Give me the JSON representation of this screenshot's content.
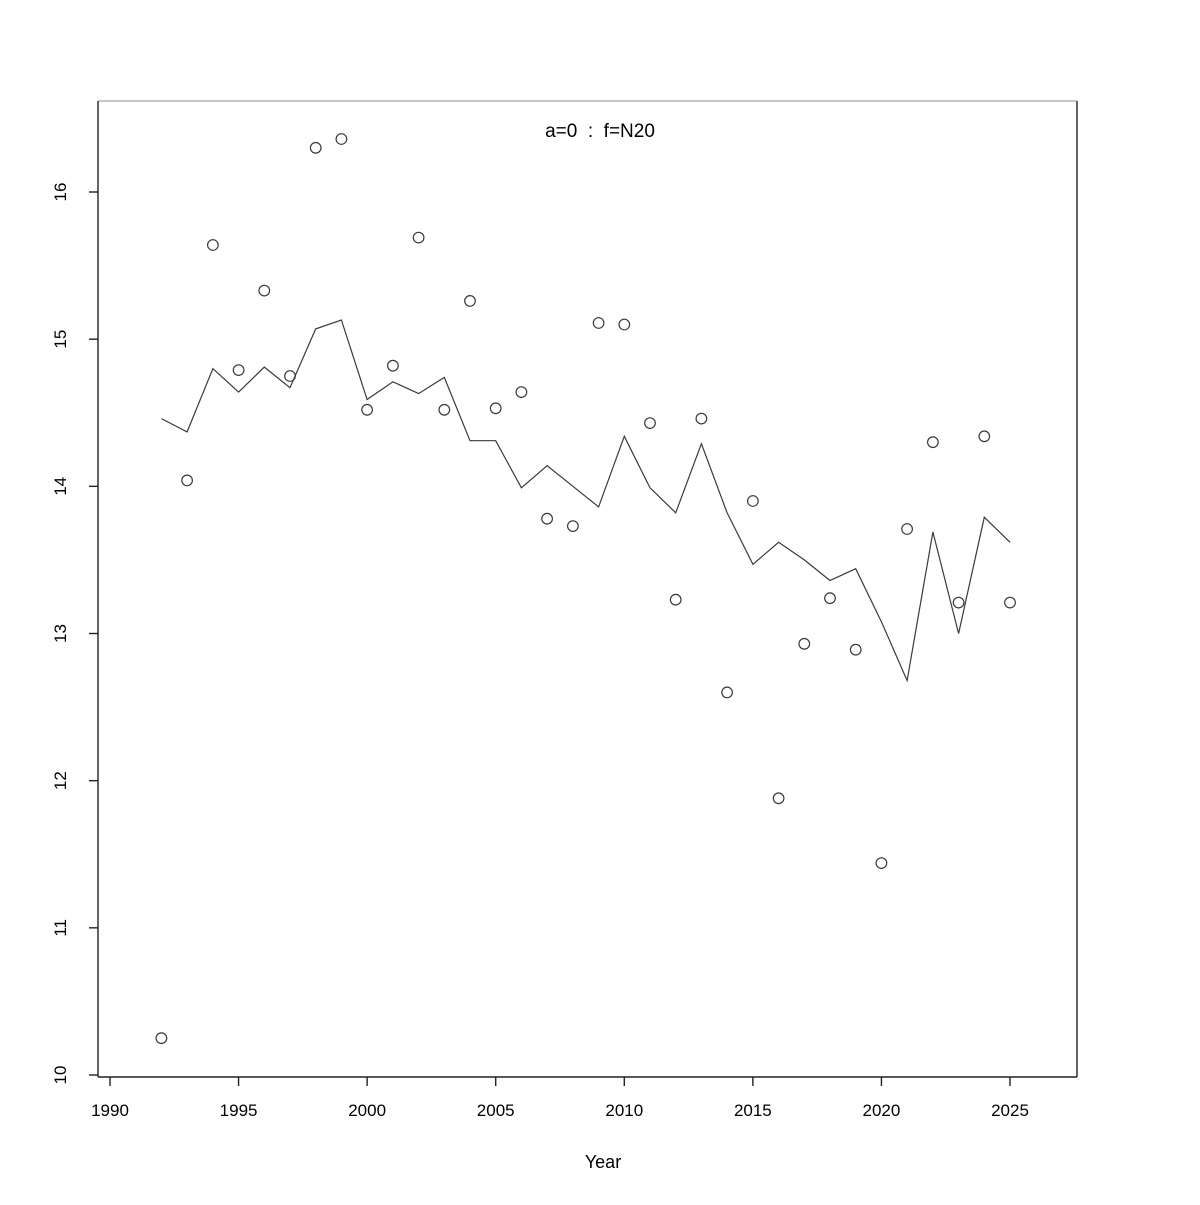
{
  "page": {
    "background": "#ffffff"
  },
  "chart_data": {
    "type": "scatter",
    "title": "a=0  :  f=N20",
    "title_color": "#8f8f8f",
    "xlabel": "Year",
    "ylabel": "",
    "grid": false,
    "legend_position": "none",
    "x_ticks": [
      1990,
      1995,
      2000,
      2005,
      2010,
      2015,
      2020,
      2025
    ],
    "y_ticks": [
      10,
      11,
      12,
      13,
      14,
      15,
      16
    ],
    "xlim": [
      1989.5,
      2027.6
    ],
    "ylim": [
      9.97,
      16.62
    ],
    "x": [
      1992,
      1993,
      1994,
      1995,
      1996,
      1997,
      1998,
      1999,
      2000,
      2001,
      2002,
      2003,
      2004,
      2005,
      2006,
      2007,
      2008,
      2009,
      2010,
      2011,
      2012,
      2013,
      2014,
      2015,
      2016,
      2017,
      2018,
      2019,
      2020,
      2021,
      2022,
      2023,
      2024,
      2025
    ],
    "series": [
      {
        "name": "observed-points",
        "style": "open-circles",
        "color": "#3a3a3a",
        "values": [
          10.25,
          14.04,
          15.64,
          14.79,
          15.33,
          14.75,
          16.3,
          16.36,
          14.52,
          14.82,
          15.69,
          14.52,
          15.26,
          14.53,
          14.64,
          13.78,
          13.73,
          15.11,
          15.1,
          14.43,
          13.23,
          14.46,
          12.6,
          13.9,
          11.88,
          12.93,
          13.24,
          12.89,
          11.44,
          13.71,
          14.3,
          13.21,
          14.34,
          13.21
        ]
      },
      {
        "name": "fitted-line",
        "style": "solid-line",
        "color": "#3a3a3a",
        "values": [
          14.46,
          14.37,
          14.8,
          14.64,
          14.81,
          14.67,
          15.07,
          15.13,
          14.59,
          14.71,
          14.63,
          14.74,
          14.31,
          14.31,
          13.99,
          14.14,
          14.0,
          13.86,
          14.34,
          13.99,
          13.82,
          14.29,
          13.82,
          13.47,
          13.62,
          13.5,
          13.36,
          13.44,
          13.08,
          12.68,
          13.69,
          13.0,
          13.79,
          13.62
        ]
      }
    ]
  }
}
